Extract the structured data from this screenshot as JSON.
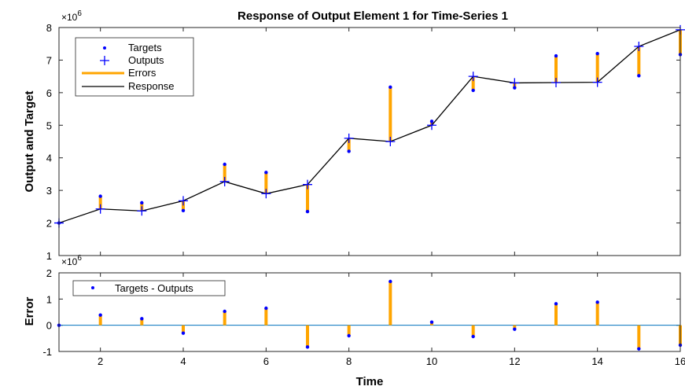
{
  "colors": {
    "target": "#0000ff",
    "output": "#0000ff",
    "error": "#ffa500",
    "response": "#000000",
    "zero_line": "#0072bd"
  },
  "chart_data": [
    {
      "type": "line",
      "title": "Response of Output Element 1 for Time-Series 1",
      "xlabel": "",
      "ylabel": "Output and Target",
      "exponent_label": "×10",
      "exponent_power": "6",
      "xlim": [
        1,
        16
      ],
      "ylim": [
        1,
        8
      ],
      "yscale_note": "values in units of 10^6",
      "yticks": [
        1,
        2,
        3,
        4,
        5,
        6,
        7,
        8
      ],
      "grid": false,
      "legend_position": "top-left",
      "x": [
        1,
        2,
        3,
        4,
        5,
        6,
        7,
        8,
        9,
        10,
        11,
        12,
        13,
        14,
        15,
        16
      ],
      "series": [
        {
          "name": "Targets",
          "marker": "dot",
          "values": [
            2.0,
            2.82,
            2.62,
            2.38,
            3.8,
            3.55,
            2.35,
            4.2,
            6.17,
            5.12,
            6.07,
            6.15,
            7.13,
            7.2,
            6.52,
            7.17
          ]
        },
        {
          "name": "Outputs",
          "marker": "plus",
          "values": [
            2.0,
            2.43,
            2.37,
            2.68,
            3.27,
            2.9,
            3.18,
            4.6,
            4.5,
            5.0,
            6.5,
            6.3,
            6.31,
            6.32,
            7.42,
            7.93
          ]
        },
        {
          "name": "Errors",
          "style": "stem"
        },
        {
          "name": "Response",
          "style": "line"
        }
      ]
    },
    {
      "type": "stem",
      "title": "",
      "xlabel": "Time",
      "ylabel": "Error",
      "exponent_label": "×10",
      "exponent_power": "6",
      "xlim": [
        1,
        16
      ],
      "ylim": [
        -1,
        2
      ],
      "yticks": [
        -1,
        0,
        1,
        2
      ],
      "xticks": [
        2,
        4,
        6,
        8,
        10,
        12,
        14,
        16
      ],
      "grid": false,
      "legend_position": "top-left",
      "x": [
        1,
        2,
        3,
        4,
        5,
        6,
        7,
        8,
        9,
        10,
        11,
        12,
        13,
        14,
        15,
        16
      ],
      "series": [
        {
          "name": "Targets - Outputs",
          "values": [
            0.0,
            0.39,
            0.25,
            -0.3,
            0.53,
            0.65,
            -0.83,
            -0.4,
            1.67,
            0.12,
            -0.43,
            -0.15,
            0.82,
            0.88,
            -0.9,
            -0.76
          ]
        }
      ]
    }
  ]
}
